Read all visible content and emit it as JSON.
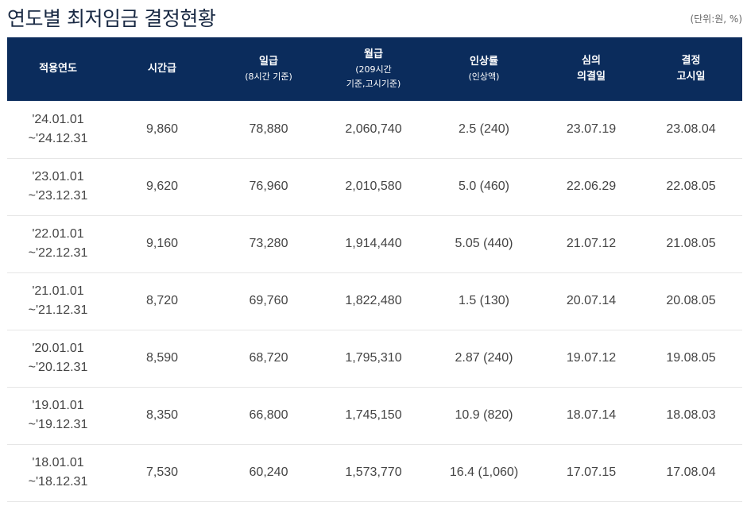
{
  "page": {
    "title": "연도별 최저임금 결정현황",
    "unit": "(단위:원, %)"
  },
  "table": {
    "headers": [
      {
        "line1": "적용연도",
        "sub": ""
      },
      {
        "line1": "시간급",
        "sub": ""
      },
      {
        "line1": "일급",
        "sub": "(8시간 기준)"
      },
      {
        "line1": "월급",
        "sub": "(209시간",
        "sub2": "기준,고시기준)"
      },
      {
        "line1": "인상률",
        "sub": "(인상액)"
      },
      {
        "line1": "심의",
        "line2": "의결일"
      },
      {
        "line1": "결정",
        "line2": "고시일"
      }
    ],
    "rows": [
      {
        "period_start": "'24.01.01",
        "period_end": "~'24.12.31",
        "hourly": "9,860",
        "daily": "78,880",
        "monthly": "2,060,740",
        "rate": "2.5 (240)",
        "resolved": "23.07.19",
        "announced": "23.08.04"
      },
      {
        "period_start": "'23.01.01",
        "period_end": "~'23.12.31",
        "hourly": "9,620",
        "daily": "76,960",
        "monthly": "2,010,580",
        "rate": "5.0 (460)",
        "resolved": "22.06.29",
        "announced": "22.08.05"
      },
      {
        "period_start": "'22.01.01",
        "period_end": "~'22.12.31",
        "hourly": "9,160",
        "daily": "73,280",
        "monthly": "1,914,440",
        "rate": "5.05 (440)",
        "resolved": "21.07.12",
        "announced": "21.08.05"
      },
      {
        "period_start": "'21.01.01",
        "period_end": "~'21.12.31",
        "hourly": "8,720",
        "daily": "69,760",
        "monthly": "1,822,480",
        "rate": "1.5 (130)",
        "resolved": "20.07.14",
        "announced": "20.08.05"
      },
      {
        "period_start": "'20.01.01",
        "period_end": "~'20.12.31",
        "hourly": "8,590",
        "daily": "68,720",
        "monthly": "1,795,310",
        "rate": "2.87 (240)",
        "resolved": "19.07.12",
        "announced": "19.08.05"
      },
      {
        "period_start": "'19.01.01",
        "period_end": "~'19.12.31",
        "hourly": "8,350",
        "daily": "66,800",
        "monthly": "1,745,150",
        "rate": "10.9 (820)",
        "resolved": "18.07.14",
        "announced": "18.08.03"
      },
      {
        "period_start": "'18.01.01",
        "period_end": "~'18.12.31",
        "hourly": "7,530",
        "daily": "60,240",
        "monthly": "1,573,770",
        "rate": "16.4 (1,060)",
        "resolved": "17.07.15",
        "announced": "17.08.04"
      }
    ]
  }
}
